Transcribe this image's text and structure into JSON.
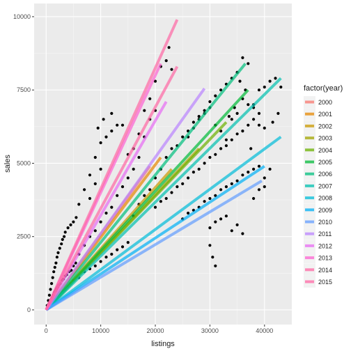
{
  "chart_data": {
    "type": "scatter",
    "xlabel": "listings",
    "ylabel": "sales",
    "xlim": [
      -2200,
      45000
    ],
    "ylim": [
      -500,
      10450
    ],
    "x_ticks": [
      0,
      10000,
      20000,
      30000,
      40000
    ],
    "x_tick_labels": [
      "0",
      "10000",
      "20000",
      "30000",
      "40000"
    ],
    "y_ticks": [
      0,
      2500,
      5000,
      7500,
      10000
    ],
    "y_tick_labels": [
      "0",
      "2500",
      "5000",
      "7500",
      "10000"
    ],
    "grid": true,
    "legend": {
      "title": "factor(year)",
      "position": "right",
      "entries": [
        {
          "label": "2000",
          "color": "#F8766D"
        },
        {
          "label": "2001",
          "color": "#E58700"
        },
        {
          "label": "2002",
          "color": "#C99800"
        },
        {
          "label": "2003",
          "color": "#A3A500"
        },
        {
          "label": "2004",
          "color": "#6BB100"
        },
        {
          "label": "2005",
          "color": "#00BA38"
        },
        {
          "label": "2006",
          "color": "#00BF7D"
        },
        {
          "label": "2007",
          "color": "#00C0AF"
        },
        {
          "label": "2008",
          "color": "#00BCD8"
        },
        {
          "label": "2009",
          "color": "#00B0F6"
        },
        {
          "label": "2010",
          "color": "#619CFF"
        },
        {
          "label": "2011",
          "color": "#B983FF"
        },
        {
          "label": "2012",
          "color": "#E76BF3"
        },
        {
          "label": "2013",
          "color": "#FD61D1"
        },
        {
          "label": "2014",
          "color": "#FF67A4"
        },
        {
          "label": "2015",
          "color": "#FF67A4"
        }
      ]
    },
    "lines": [
      {
        "year": "2000",
        "color": "#F8766D",
        "x": [
          0,
          19000
        ],
        "y": [
          0,
          4900
        ]
      },
      {
        "year": "2001",
        "color": "#E58700",
        "x": [
          0,
          21000
        ],
        "y": [
          0,
          5200
        ]
      },
      {
        "year": "2002",
        "color": "#C99800",
        "x": [
          0,
          23000
        ],
        "y": [
          0,
          4800
        ]
      },
      {
        "year": "2003",
        "color": "#A3A500",
        "x": [
          0,
          28000
        ],
        "y": [
          0,
          5500
        ]
      },
      {
        "year": "2004",
        "color": "#6BB100",
        "x": [
          0,
          33000
        ],
        "y": [
          0,
          6400
        ]
      },
      {
        "year": "2005",
        "color": "#00BA38",
        "x": [
          0,
          37000
        ],
        "y": [
          0,
          7500
        ]
      },
      {
        "year": "2006",
        "color": "#00BF7D",
        "x": [
          0,
          36500
        ],
        "y": [
          0,
          8400
        ]
      },
      {
        "year": "2007",
        "color": "#00C0AF",
        "x": [
          0,
          43000
        ],
        "y": [
          0,
          7900
        ]
      },
      {
        "year": "2008",
        "color": "#00BCD8",
        "x": [
          0,
          43000
        ],
        "y": [
          0,
          5900
        ]
      },
      {
        "year": "2009",
        "color": "#00B0F6",
        "x": [
          0,
          40000
        ],
        "y": [
          0,
          4900
        ]
      },
      {
        "year": "2010",
        "color": "#619CFF",
        "x": [
          0,
          39500
        ],
        "y": [
          0,
          4400
        ]
      },
      {
        "year": "2011",
        "color": "#B983FF",
        "x": [
          0,
          29000
        ],
        "y": [
          0,
          7550
        ]
      },
      {
        "year": "2012",
        "color": "#E76BF3",
        "x": [
          0,
          22000
        ],
        "y": [
          0,
          7100
        ]
      },
      {
        "year": "2013",
        "color": "#FD61D1",
        "x": [
          0,
          21000
        ],
        "y": [
          0,
          8400
        ]
      },
      {
        "year": "2014",
        "color": "#FF67A4",
        "x": [
          0,
          24000
        ],
        "y": [
          0,
          8300
        ]
      },
      {
        "year": "2015",
        "color": "#FF67A4",
        "x": [
          0,
          24000
        ],
        "y": [
          0,
          9900
        ]
      }
    ],
    "points": [
      [
        200,
        150
      ],
      [
        400,
        320
      ],
      [
        600,
        500
      ],
      [
        800,
        700
      ],
      [
        1000,
        900
      ],
      [
        1200,
        1100
      ],
      [
        1400,
        1300
      ],
      [
        1600,
        1450
      ],
      [
        1800,
        1600
      ],
      [
        2000,
        1800
      ],
      [
        2200,
        1950
      ],
      [
        2500,
        2100
      ],
      [
        2800,
        2250
      ],
      [
        3000,
        2400
      ],
      [
        3300,
        2500
      ],
      [
        3500,
        2650
      ],
      [
        4000,
        2800
      ],
      [
        4500,
        2900
      ],
      [
        5000,
        3000
      ],
      [
        5500,
        3150
      ],
      [
        300,
        80
      ],
      [
        500,
        200
      ],
      [
        700,
        250
      ],
      [
        900,
        350
      ],
      [
        1100,
        420
      ],
      [
        1300,
        500
      ],
      [
        1500,
        600
      ],
      [
        1700,
        650
      ],
      [
        1900,
        720
      ],
      [
        2100,
        780
      ],
      [
        2300,
        850
      ],
      [
        2600,
        900
      ],
      [
        2900,
        1000
      ],
      [
        3200,
        1050
      ],
      [
        3500,
        1150
      ],
      [
        3800,
        1200
      ],
      [
        4200,
        1300
      ],
      [
        4600,
        1350
      ],
      [
        5000,
        1500
      ],
      [
        5400,
        1600
      ],
      [
        600,
        100
      ],
      [
        1000,
        250
      ],
      [
        1500,
        300
      ],
      [
        2000,
        450
      ],
      [
        2500,
        500
      ],
      [
        3000,
        650
      ],
      [
        3500,
        700
      ],
      [
        4000,
        800
      ],
      [
        4500,
        900
      ],
      [
        5000,
        1000
      ],
      [
        6000,
        1100
      ],
      [
        7000,
        1300
      ],
      [
        8000,
        1400
      ],
      [
        9000,
        1500
      ],
      [
        10000,
        1650
      ],
      [
        11000,
        1800
      ],
      [
        12000,
        1900
      ],
      [
        13000,
        2050
      ],
      [
        14000,
        2150
      ],
      [
        15000,
        2300
      ],
      [
        6000,
        3600
      ],
      [
        7000,
        4100
      ],
      [
        8000,
        4600
      ],
      [
        9000,
        5200
      ],
      [
        10000,
        5700
      ],
      [
        11000,
        5900
      ],
      [
        12000,
        6100
      ],
      [
        13000,
        6300
      ],
      [
        9500,
        6200
      ],
      [
        10500,
        6500
      ],
      [
        12000,
        6700
      ],
      [
        14000,
        6300
      ],
      [
        15000,
        5300
      ],
      [
        16000,
        5500
      ],
      [
        17000,
        6000
      ],
      [
        18000,
        6800
      ],
      [
        19000,
        7200
      ],
      [
        20000,
        7800
      ],
      [
        21000,
        8300
      ],
      [
        22000,
        8500
      ],
      [
        22500,
        8950
      ],
      [
        23000,
        8200
      ],
      [
        20000,
        6800
      ],
      [
        19000,
        6500
      ],
      [
        18000,
        5900
      ],
      [
        17000,
        5200
      ],
      [
        16000,
        4800
      ],
      [
        15000,
        4500
      ],
      [
        14000,
        4200
      ],
      [
        13000,
        3900
      ],
      [
        12000,
        3500
      ],
      [
        11000,
        3300
      ],
      [
        10000,
        3000
      ],
      [
        9000,
        2700
      ],
      [
        8000,
        2500
      ],
      [
        7000,
        2200
      ],
      [
        6000,
        1900
      ],
      [
        8000,
        3800
      ],
      [
        9000,
        4300
      ],
      [
        10000,
        4800
      ],
      [
        16000,
        3200
      ],
      [
        17000,
        3600
      ],
      [
        18000,
        3900
      ],
      [
        19000,
        4100
      ],
      [
        20000,
        4500
      ],
      [
        21000,
        4800
      ],
      [
        22000,
        5200
      ],
      [
        23000,
        5500
      ],
      [
        24000,
        5600
      ],
      [
        25000,
        5900
      ],
      [
        26000,
        6100
      ],
      [
        27000,
        6400
      ],
      [
        28000,
        6600
      ],
      [
        29000,
        6800
      ],
      [
        30000,
        7100
      ],
      [
        31000,
        7300
      ],
      [
        32000,
        7500
      ],
      [
        33000,
        7700
      ],
      [
        34000,
        7900
      ],
      [
        35000,
        8100
      ],
      [
        36000,
        8600
      ],
      [
        37000,
        8400
      ],
      [
        38000,
        7000
      ],
      [
        39000,
        7500
      ],
      [
        40000,
        7600
      ],
      [
        41000,
        7800
      ],
      [
        42000,
        7900
      ],
      [
        43000,
        7600
      ],
      [
        42500,
        6700
      ],
      [
        41500,
        6400
      ],
      [
        20000,
        3500
      ],
      [
        21000,
        3700
      ],
      [
        22000,
        3800
      ],
      [
        23000,
        4000
      ],
      [
        24000,
        4200
      ],
      [
        25000,
        4300
      ],
      [
        26000,
        4500
      ],
      [
        27000,
        4700
      ],
      [
        28000,
        4800
      ],
      [
        29000,
        5000
      ],
      [
        30000,
        5200
      ],
      [
        31000,
        5300
      ],
      [
        32000,
        5500
      ],
      [
        33000,
        5600
      ],
      [
        34000,
        5800
      ],
      [
        35000,
        6000
      ],
      [
        36000,
        6100
      ],
      [
        37000,
        6300
      ],
      [
        38000,
        6500
      ],
      [
        39000,
        6700
      ],
      [
        25000,
        3100
      ],
      [
        26000,
        3300
      ],
      [
        27000,
        3400
      ],
      [
        28000,
        3500
      ],
      [
        29000,
        3700
      ],
      [
        30000,
        3800
      ],
      [
        31000,
        3900
      ],
      [
        32000,
        4100
      ],
      [
        33000,
        4200
      ],
      [
        34000,
        4300
      ],
      [
        35000,
        4400
      ],
      [
        36000,
        4600
      ],
      [
        37000,
        4700
      ],
      [
        38000,
        4800
      ],
      [
        39000,
        4900
      ],
      [
        40000,
        4500
      ],
      [
        41000,
        4800
      ],
      [
        40000,
        4200
      ],
      [
        39000,
        4100
      ],
      [
        38000,
        3800
      ],
      [
        30000,
        2800
      ],
      [
        31000,
        3000
      ],
      [
        32000,
        3100
      ],
      [
        33000,
        3200
      ],
      [
        34000,
        2700
      ],
      [
        35000,
        2900
      ],
      [
        36000,
        2600
      ],
      [
        30000,
        2200
      ],
      [
        31000,
        1500
      ],
      [
        30500,
        1800
      ],
      [
        26000,
        5900
      ],
      [
        27000,
        6200
      ],
      [
        28000,
        6500
      ],
      [
        29000,
        6700
      ],
      [
        30000,
        6900
      ],
      [
        31000,
        6300
      ],
      [
        32000,
        6100
      ],
      [
        33000,
        5800
      ],
      [
        34000,
        6500
      ],
      [
        35000,
        6700
      ],
      [
        36000,
        7200
      ],
      [
        37000,
        7000
      ],
      [
        38000,
        6900
      ],
      [
        39000,
        6300
      ],
      [
        40000,
        6200
      ],
      [
        36500,
        7500
      ],
      [
        35500,
        7800
      ],
      [
        34500,
        6900
      ],
      [
        33500,
        6600
      ],
      [
        37500,
        5500
      ]
    ]
  }
}
